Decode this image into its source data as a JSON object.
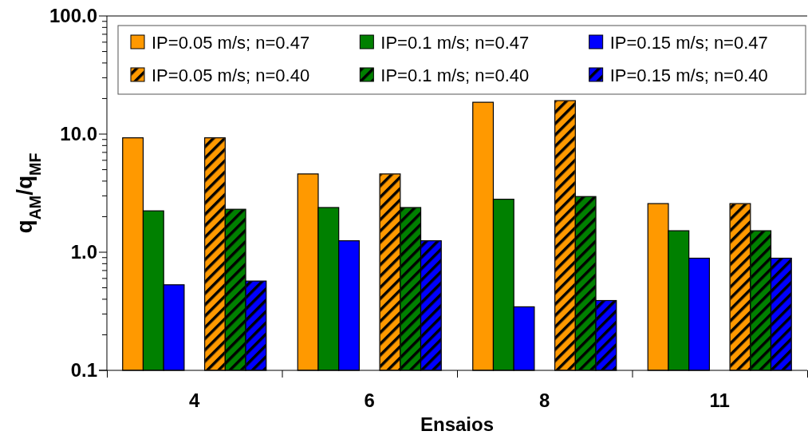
{
  "chart_data": {
    "type": "bar",
    "xlabel": "Ensaios",
    "ylabel": "q$_{AM}$/q$_{MF}$",
    "categories": [
      "4",
      "6",
      "8",
      "11"
    ],
    "series": [
      {
        "name": "IP=0.05 m/s; n=0.47",
        "color": "#ff9900",
        "values": [
          9.3,
          4.6,
          18.6,
          2.58
        ]
      },
      {
        "name": "IP=0.1 m/s; n=0.47",
        "color": "#008000",
        "values": [
          2.24,
          2.39,
          2.81,
          1.52
        ]
      },
      {
        "name": "IP=0.15 m/s; n=0.47",
        "color": "#0000ff",
        "values": [
          0.53,
          1.25,
          0.345,
          0.89
        ]
      },
      {
        "name": "IP=0.05 m/s; n=0.40",
        "color": "#ff9900",
        "values": [
          9.3,
          4.6,
          19.2,
          2.58
        ]
      },
      {
        "name": "IP=0.1 m/s; n=0.40",
        "color": "#008000",
        "values": [
          2.31,
          2.39,
          2.96,
          1.52
        ]
      },
      {
        "name": "IP=0.15 m/s; n=0.40",
        "color": "#0000ff",
        "values": [
          0.57,
          1.25,
          0.39,
          0.89
        ]
      }
    ],
    "log": true,
    "ylim": [
      0.1,
      100
    ],
    "yticks": [
      {
        "value": 0.1,
        "label": "0.1"
      },
      {
        "value": 0.2,
        "label": null
      },
      {
        "value": 0.3,
        "label": null
      },
      {
        "value": 0.4,
        "label": null
      },
      {
        "value": 0.5,
        "label": null
      },
      {
        "value": 0.6,
        "label": null
      },
      {
        "value": 0.7,
        "label": null
      },
      {
        "value": 0.8,
        "label": null
      },
      {
        "value": 0.9,
        "label": null
      },
      {
        "value": 1,
        "label": "1.0"
      },
      {
        "value": 2,
        "label": null
      },
      {
        "value": 3,
        "label": null
      },
      {
        "value": 4,
        "label": null
      },
      {
        "value": 5,
        "label": null
      },
      {
        "value": 6,
        "label": null
      },
      {
        "value": 7,
        "label": null
      },
      {
        "value": 8,
        "label": null
      },
      {
        "value": 9,
        "label": null
      },
      {
        "value": 10,
        "label": "10.0"
      },
      {
        "value": 20,
        "label": null
      },
      {
        "value": 30,
        "label": null
      },
      {
        "value": 40,
        "label": null
      },
      {
        "value": 50,
        "label": null
      },
      {
        "value": 60,
        "label": null
      },
      {
        "value": 70,
        "label": null
      },
      {
        "value": 80,
        "label": null
      },
      {
        "value": 90,
        "label": null
      },
      {
        "value": 100,
        "label": "100.0"
      }
    ],
    "legend": "top",
    "grid": false
  }
}
